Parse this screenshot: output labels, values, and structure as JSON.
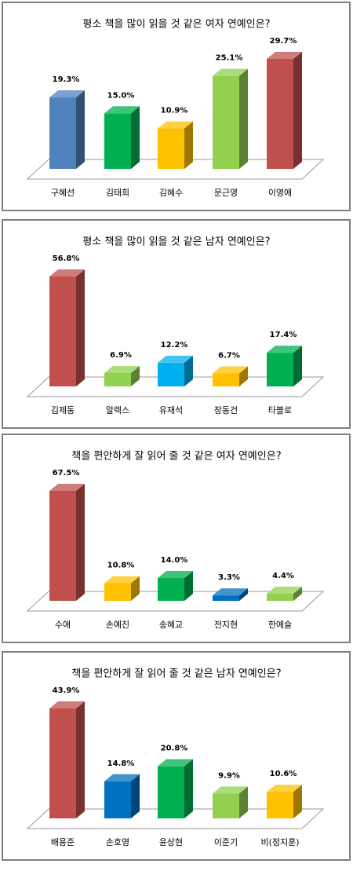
{
  "chart_data": [
    {
      "type": "bar3d",
      "title": "평소 책을 많이 읽을 것 같은 여자 연예인은?",
      "categories": [
        "구혜선",
        "김태희",
        "김혜수",
        "문근영",
        "이영애"
      ],
      "values": [
        19.3,
        15.0,
        10.9,
        25.1,
        29.7
      ],
      "value_labels": [
        "19.3%",
        "15.0%",
        "10.9%",
        "25.1%",
        "29.7%"
      ],
      "colors": [
        "#4f81bd",
        "#00b050",
        "#ffc000",
        "#92d050",
        "#c0504d"
      ]
    },
    {
      "type": "bar3d",
      "title": "평소 책을 많이 읽을 것 같은 남자 연예인은?",
      "categories": [
        "김제동",
        "알렉스",
        "유재석",
        "장동건",
        "타블로"
      ],
      "values": [
        56.8,
        6.9,
        12.2,
        6.7,
        17.4
      ],
      "value_labels": [
        "56.8%",
        "6.9%",
        "12.2%",
        "6.7%",
        "17.4%"
      ],
      "colors": [
        "#c0504d",
        "#92d050",
        "#00b0f0",
        "#ffc000",
        "#00b050"
      ]
    },
    {
      "type": "bar3d",
      "title": "책을 편안하게 잘 읽어 줄 것 같은 여자 연예인은?",
      "categories": [
        "수애",
        "손예진",
        "송혜교",
        "전지현",
        "한예슬"
      ],
      "values": [
        67.5,
        10.8,
        14.0,
        3.3,
        4.4
      ],
      "value_labels": [
        "67.5%",
        "10.8%",
        "14.0%",
        "3.3%",
        "4.4%"
      ],
      "colors": [
        "#c0504d",
        "#ffc000",
        "#00b050",
        "#0070c0",
        "#92d050"
      ]
    },
    {
      "type": "bar3d",
      "title": "책을 편안하게 잘 읽어 줄 것 같은 남자 연예인은?",
      "categories": [
        "배용준",
        "손호영",
        "윤상현",
        "이준기",
        "비(정지훈)"
      ],
      "values": [
        43.9,
        14.8,
        20.8,
        9.9,
        10.6
      ],
      "value_labels": [
        "43.9%",
        "14.8%",
        "20.8%",
        "9.9%",
        "10.6%"
      ],
      "colors": [
        "#c0504d",
        "#0070c0",
        "#00b050",
        "#92d050",
        "#ffc000"
      ]
    }
  ]
}
